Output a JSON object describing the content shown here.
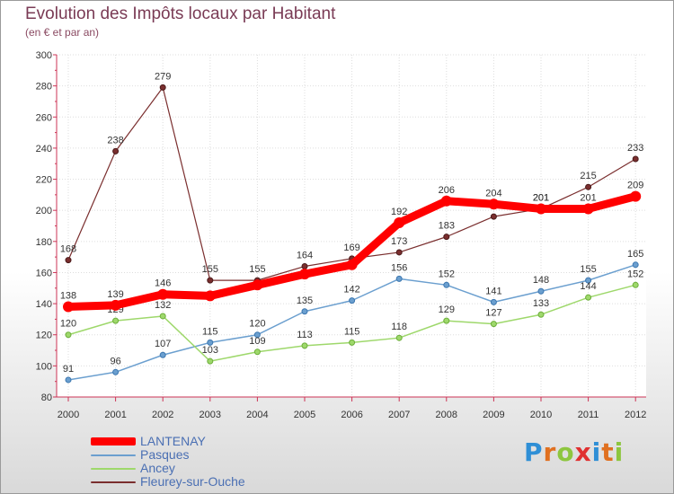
{
  "header": {
    "title": "Evolution des Impôts locaux par Habitant",
    "subtitle": "(en € et par an)"
  },
  "logo": {
    "text": "Proxiti",
    "letters": [
      "P",
      "r",
      "o",
      "x",
      "i",
      "t",
      "i"
    ],
    "colors": [
      "#2f8fd6",
      "#e07020",
      "#8dc63f",
      "#e03030",
      "#2f8fd6",
      "#e07020",
      "#8dc63f"
    ]
  },
  "chart_data": {
    "type": "line",
    "title": "Evolution des Impôts locaux par Habitant",
    "subtitle": "(en € et par an)",
    "categories": [
      "2000",
      "2001",
      "2002",
      "2003",
      "2004",
      "2005",
      "2006",
      "2007",
      "2008",
      "2009",
      "2010",
      "2011",
      "2012"
    ],
    "yticks": [
      80,
      100,
      120,
      140,
      160,
      180,
      200,
      220,
      240,
      260,
      280,
      300
    ],
    "ylim": [
      80,
      300
    ],
    "legend_position": "bottom-left",
    "series": [
      {
        "name": "LANTENAY",
        "color": "#ff0000",
        "width": 9,
        "point_radius": 6,
        "values": [
          138,
          139,
          146,
          145,
          152,
          159,
          165,
          192,
          206,
          204,
          201,
          201,
          209
        ],
        "labels": [
          "138",
          "139",
          "146",
          "",
          "",
          "",
          "",
          "192",
          "206",
          "204",
          "201",
          "201",
          "209"
        ]
      },
      {
        "name": "Pasques",
        "color": "#6b9fcf",
        "width": 1.5,
        "point_radius": 3,
        "values": [
          91,
          96,
          107,
          115,
          120,
          135,
          142,
          156,
          152,
          141,
          148,
          155,
          165
        ],
        "labels": [
          "91",
          "96",
          "107",
          "115",
          "120",
          "135",
          "142",
          "156",
          "152",
          "141",
          "148",
          "155",
          "165"
        ]
      },
      {
        "name": "Ancey",
        "color": "#9ed86b",
        "width": 1.5,
        "point_radius": 3,
        "values": [
          120,
          129,
          132,
          103,
          109,
          113,
          115,
          118,
          129,
          127,
          133,
          144,
          152
        ],
        "labels": [
          "120",
          "129",
          "132",
          "103",
          "109",
          "113",
          "115",
          "118",
          "129",
          "127",
          "133",
          "144",
          "152"
        ]
      },
      {
        "name": "Fleurey-sur-Ouche",
        "color": "#7a2e2e",
        "width": 1.2,
        "point_radius": 3,
        "values": [
          168,
          238,
          279,
          155,
          155,
          164,
          169,
          173,
          183,
          196,
          201,
          215,
          233
        ],
        "labels": [
          "168",
          "238",
          "279",
          "155",
          "155",
          "164",
          "169",
          "173",
          "183",
          "",
          "201",
          "215",
          "233"
        ]
      }
    ]
  }
}
